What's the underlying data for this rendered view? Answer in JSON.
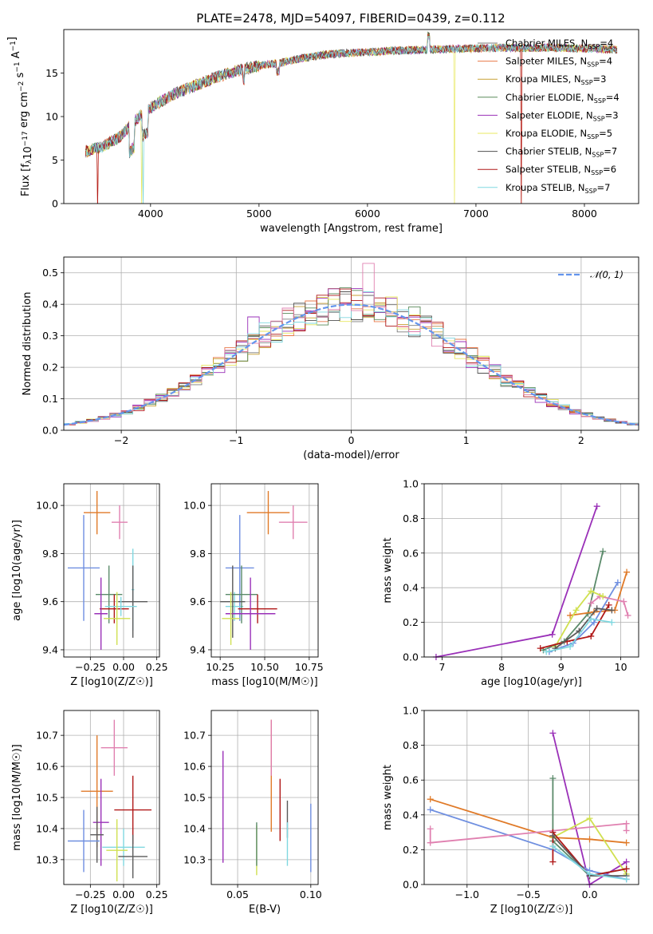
{
  "title": "PLATE=2478, MJD=54097, FIBERID=0439, z=0.112",
  "colors": {
    "Chabrier MILES": "#7d7d7d",
    "Salpeter MILES": "#e8794a",
    "Kroupa MILES": "#c8a035",
    "Chabrier ELODIE": "#5a8a5a",
    "Salpeter ELODIE": "#9a30b8",
    "Kroupa ELODIE": "#e8e860",
    "Chabrier STELIB": "#505050",
    "Salpeter STELIB": "#b01818",
    "Kroupa STELIB": "#80d8e0",
    "norm": "#6495ed",
    "blue": "#6f8fe0",
    "orange": "#e07a28",
    "pink": "#e080b0",
    "green": "#5a8a6a",
    "purple": "#9a30b8",
    "lime": "#d0e050",
    "gray": "#5a5a5a",
    "red": "#b01818",
    "cyan": "#80d8e0"
  },
  "legend_spectrum": [
    {
      "model": "Chabrier MILES",
      "nssp": "4"
    },
    {
      "model": "Salpeter MILES",
      "nssp": "4"
    },
    {
      "model": "Kroupa MILES",
      "nssp": "3"
    },
    {
      "model": "Chabrier ELODIE",
      "nssp": "4"
    },
    {
      "model": "Salpeter ELODIE",
      "nssp": "3"
    },
    {
      "model": "Kroupa ELODIE",
      "nssp": "5"
    },
    {
      "model": "Chabrier STELIB",
      "nssp": "7"
    },
    {
      "model": "Salpeter STELIB",
      "nssp": "6"
    },
    {
      "model": "Kroupa STELIB",
      "nssp": "7"
    }
  ],
  "legend_norm": "𝒩(0, 1)",
  "chart_data": [
    {
      "type": "line",
      "name": "spectrum",
      "xlabel": "wavelength [Angstrom, rest frame]",
      "ylabel": "Flux [f_λ 10^-17 erg cm^-2 s^-1 A^-1]",
      "xlim": [
        3200,
        8500
      ],
      "ylim": [
        0,
        20
      ],
      "xticks": [
        4000,
        5000,
        6000,
        7000,
        8000
      ],
      "yticks": [
        0,
        5,
        10,
        15
      ],
      "x": [
        3400,
        3550,
        3700,
        3850,
        4000,
        4200,
        4400,
        4600,
        4800,
        5000,
        5200,
        5400,
        5600,
        5800,
        6000,
        6300,
        6600,
        6900,
        7200,
        7500,
        7800,
        8100,
        8300
      ],
      "y": [
        6,
        6.5,
        7.5,
        9.5,
        11,
        12.5,
        13.5,
        14.5,
        15.3,
        15.8,
        16.2,
        16.7,
        17.1,
        17.3,
        17.4,
        17.6,
        17.7,
        17.8,
        17.9,
        17.9,
        17.9,
        17.8,
        17.7
      ]
    },
    {
      "type": "bar",
      "name": "residual-histogram",
      "xlabel": "(data-model)/error",
      "ylabel": "Normed distribution",
      "xlim": [
        -2.5,
        2.5
      ],
      "ylim": [
        0,
        0.55
      ],
      "xticks": [
        -2,
        -1,
        0,
        1,
        2
      ],
      "yticks": [
        0.0,
        0.1,
        0.2,
        0.3,
        0.4,
        0.5
      ],
      "reference": "N(0,1)"
    },
    {
      "type": "scatter",
      "name": "age-vs-Z",
      "xlabel": "Z [log10(Z/Z☉)]",
      "ylabel": "age  [log10(age/yr)]",
      "xlim": [
        -0.45,
        0.27
      ],
      "ylim": [
        9.37,
        10.09
      ],
      "xticks": [
        -0.25,
        0.0,
        0.25
      ],
      "yticks": [
        9.4,
        9.6,
        9.8,
        10.0
      ],
      "points": [
        {
          "c": "orange",
          "x": -0.2,
          "xe": 0.1,
          "y": 9.97,
          "ye": 0.09
        },
        {
          "c": "pink",
          "x": -0.03,
          "xe": 0.06,
          "y": 9.93,
          "ye": 0.07
        },
        {
          "c": "blue",
          "x": -0.3,
          "xe": 0.12,
          "y": 9.74,
          "ye": 0.22
        },
        {
          "c": "cyan",
          "x": 0.07,
          "xe": 0.01,
          "y": 9.65,
          "ye": 0.17
        },
        {
          "c": "green",
          "x": -0.11,
          "xe": 0.1,
          "y": 9.63,
          "ye": 0.12
        },
        {
          "c": "gray",
          "x": 0.07,
          "xe": 0.11,
          "y": 9.6,
          "ye": 0.15
        },
        {
          "c": "red",
          "x": -0.07,
          "xe": 0.11,
          "y": 9.57,
          "ye": 0.06
        },
        {
          "c": "cyan",
          "x": -0.02,
          "xe": 0.12,
          "y": 9.58,
          "ye": 0.04
        },
        {
          "c": "purple",
          "x": -0.17,
          "xe": 0.05,
          "y": 9.55,
          "ye": 0.15
        },
        {
          "c": "lime",
          "x": -0.05,
          "xe": 0.1,
          "y": 9.53,
          "ye": 0.11
        }
      ]
    },
    {
      "type": "scatter",
      "name": "age-vs-mass",
      "xlabel": "mass [log10(M/M☉)]",
      "ylabel": "",
      "xlim": [
        10.2,
        10.8
      ],
      "ylim": [
        9.37,
        10.09
      ],
      "xticks": [
        10.25,
        10.5,
        10.75
      ],
      "yticks": [
        9.4,
        9.6,
        9.8,
        10.0
      ],
      "points": [
        {
          "c": "orange",
          "x": 10.52,
          "xe": 0.12,
          "y": 9.97,
          "ye": 0.09
        },
        {
          "c": "pink",
          "x": 10.66,
          "xe": 0.08,
          "y": 9.93,
          "ye": 0.07
        },
        {
          "c": "blue",
          "x": 10.36,
          "xe": 0.08,
          "y": 9.74,
          "ye": 0.22
        },
        {
          "c": "cyan",
          "x": 10.33,
          "xe": 0.05,
          "y": 9.58,
          "ye": 0.06
        },
        {
          "c": "green",
          "x": 10.37,
          "xe": 0.09,
          "y": 9.63,
          "ye": 0.12
        },
        {
          "c": "gray",
          "x": 10.32,
          "xe": 0.07,
          "y": 9.6,
          "ye": 0.15
        },
        {
          "c": "red",
          "x": 10.46,
          "xe": 0.11,
          "y": 9.57,
          "ye": 0.06
        },
        {
          "c": "purple",
          "x": 10.42,
          "xe": 0.14,
          "y": 9.55,
          "ye": 0.15
        },
        {
          "c": "lime",
          "x": 10.31,
          "xe": 0.05,
          "y": 9.53,
          "ye": 0.11
        }
      ]
    },
    {
      "type": "line",
      "name": "mass-weight-vs-age",
      "xlabel": "age  [log10(age/yr)]",
      "ylabel": "mass weight",
      "xlim": [
        6.7,
        10.3
      ],
      "ylim": [
        0,
        1
      ],
      "xticks": [
        7,
        8,
        9,
        10
      ],
      "yticks": [
        0.0,
        0.2,
        0.4,
        0.6,
        0.8,
        1.0
      ],
      "series": [
        {
          "c": "purple",
          "x": [
            6.9,
            8.85,
            9.6
          ],
          "y": [
            0.0,
            0.13,
            0.87
          ]
        },
        {
          "c": "green",
          "x": [
            8.7,
            9.05,
            9.45,
            9.7
          ],
          "y": [
            0.04,
            0.09,
            0.25,
            0.61
          ]
        },
        {
          "c": "orange",
          "x": [
            9.15,
            9.55,
            9.9,
            10.1
          ],
          "y": [
            0.24,
            0.26,
            0.27,
            0.49
          ]
        },
        {
          "c": "blue",
          "x": [
            8.8,
            9.2,
            9.55,
            9.95
          ],
          "y": [
            0.03,
            0.08,
            0.2,
            0.43
          ]
        },
        {
          "c": "pink",
          "x": [
            9.5,
            9.65,
            10.05,
            10.12
          ],
          "y": [
            0.31,
            0.35,
            0.32,
            0.24
          ]
        },
        {
          "c": "lime",
          "x": [
            8.9,
            9.25,
            9.5,
            9.7
          ],
          "y": [
            0.06,
            0.27,
            0.38,
            0.35
          ]
        },
        {
          "c": "red",
          "x": [
            8.65,
            9.1,
            9.5,
            9.8
          ],
          "y": [
            0.05,
            0.09,
            0.12,
            0.3
          ]
        },
        {
          "c": "gray",
          "x": [
            8.9,
            9.3,
            9.6,
            9.85
          ],
          "y": [
            0.05,
            0.15,
            0.28,
            0.27
          ]
        },
        {
          "c": "cyan",
          "x": [
            8.75,
            9.15,
            9.5,
            9.85
          ],
          "y": [
            0.03,
            0.06,
            0.22,
            0.2
          ]
        }
      ]
    },
    {
      "type": "scatter",
      "name": "mass-vs-Z",
      "xlabel": "Z [log10(Z/Z☉)]",
      "ylabel": "mass [log10(M/M☉)]",
      "xlim": [
        -0.45,
        0.27
      ],
      "ylim": [
        10.22,
        10.78
      ],
      "xticks": [
        -0.25,
        0.0,
        0.25
      ],
      "yticks": [
        10.3,
        10.4,
        10.5,
        10.6,
        10.7
      ],
      "points": [
        {
          "c": "pink",
          "x": -0.07,
          "xe": 0.1,
          "y": 10.66,
          "ye": 0.09
        },
        {
          "c": "orange",
          "x": -0.2,
          "xe": 0.12,
          "y": 10.52,
          "ye": 0.18
        },
        {
          "c": "red",
          "x": 0.07,
          "xe": 0.14,
          "y": 10.46,
          "ye": 0.11
        },
        {
          "c": "purple",
          "x": -0.17,
          "xe": 0.06,
          "y": 10.42,
          "ye": 0.14
        },
        {
          "c": "gray",
          "x": -0.2,
          "xe": 0.05,
          "y": 10.38,
          "ye": 0.09
        },
        {
          "c": "blue",
          "x": -0.3,
          "xe": 0.12,
          "y": 10.36,
          "ye": 0.1
        },
        {
          "c": "cyan",
          "x": 0.0,
          "xe": 0.16,
          "y": 10.34,
          "ye": 0.06
        },
        {
          "c": "lime",
          "x": -0.05,
          "xe": 0.08,
          "y": 10.33,
          "ye": 0.1
        },
        {
          "c": "gray",
          "x": 0.07,
          "xe": 0.11,
          "y": 10.31,
          "ye": 0.07
        }
      ]
    },
    {
      "type": "scatter",
      "name": "mass-vs-EBV",
      "xlabel": "E(B-V)",
      "ylabel": "",
      "xlim": [
        0.032,
        0.105
      ],
      "ylim": [
        10.22,
        10.78
      ],
      "xticks": [
        0.05,
        0.1
      ],
      "yticks": [
        10.3,
        10.4,
        10.5,
        10.6,
        10.7
      ],
      "points": [
        {
          "c": "purple",
          "x": 0.04,
          "y": 10.47,
          "ye": 0.18
        },
        {
          "c": "lime",
          "x": 0.063,
          "y": 10.33,
          "ye": 0.08
        },
        {
          "c": "green",
          "x": 0.063,
          "y": 10.35,
          "ye": 0.07
        },
        {
          "c": "orange",
          "x": 0.073,
          "y": 10.57,
          "ye": 0.18
        },
        {
          "c": "pink",
          "x": 0.073,
          "y": 10.66,
          "ye": 0.09
        },
        {
          "c": "red",
          "x": 0.079,
          "y": 10.46,
          "ye": 0.1
        },
        {
          "c": "gray",
          "x": 0.084,
          "y": 10.43,
          "ye": 0.06
        },
        {
          "c": "cyan",
          "x": 0.084,
          "y": 10.35,
          "ye": 0.07
        },
        {
          "c": "blue",
          "x": 0.1,
          "y": 10.37,
          "ye": 0.11
        }
      ]
    },
    {
      "type": "line",
      "name": "mass-weight-vs-Z",
      "xlabel": "Z [log10(Z/Z☉)]",
      "ylabel": "mass weight",
      "xlim": [
        -1.35,
        0.4
      ],
      "ylim": [
        0,
        1
      ],
      "xticks": [
        -1.0,
        -0.5,
        0.0
      ],
      "yticks": [
        0.0,
        0.2,
        0.4,
        0.6,
        0.8,
        1.0
      ],
      "series": [
        {
          "c": "purple",
          "x": [
            -0.3,
            0.0,
            0.3
          ],
          "y": [
            0.87,
            0.0,
            0.13
          ]
        },
        {
          "c": "green",
          "x": [
            -0.3,
            -0.3,
            0.0,
            0.3
          ],
          "y": [
            0.61,
            0.25,
            0.05,
            0.09
          ]
        },
        {
          "c": "orange",
          "x": [
            -1.3,
            -0.3,
            0.0,
            0.3
          ],
          "y": [
            0.49,
            0.27,
            0.26,
            0.24
          ]
        },
        {
          "c": "blue",
          "x": [
            -1.3,
            -0.3,
            0.0,
            0.3
          ],
          "y": [
            0.43,
            0.2,
            0.08,
            0.03
          ]
        },
        {
          "c": "pink",
          "x": [
            -1.3,
            -1.3,
            0.3,
            0.3
          ],
          "y": [
            0.32,
            0.24,
            0.35,
            0.31
          ]
        },
        {
          "c": "lime",
          "x": [
            -0.3,
            0.0,
            0.3
          ],
          "y": [
            0.27,
            0.38,
            0.06
          ]
        },
        {
          "c": "red",
          "x": [
            -0.3,
            -0.3,
            0.0,
            0.3
          ],
          "y": [
            0.13,
            0.3,
            0.05,
            0.09
          ]
        },
        {
          "c": "gray",
          "x": [
            -0.3,
            0.0,
            0.3
          ],
          "y": [
            0.28,
            0.05,
            0.05
          ]
        },
        {
          "c": "cyan",
          "x": [
            -0.3,
            0.0,
            0.3
          ],
          "y": [
            0.22,
            0.06,
            0.03
          ]
        }
      ]
    }
  ]
}
